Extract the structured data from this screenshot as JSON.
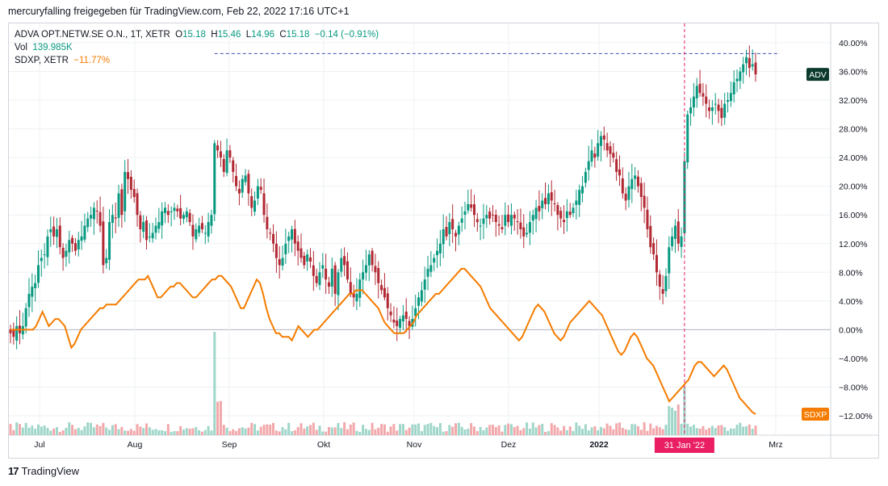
{
  "header": {
    "text": "mercuryfalling freigegeben für TradingView.com, Feb 22, 2022 17:16 UTC+1"
  },
  "legend": {
    "symbol": "ADVA OPT.NETW.SE O.N., 1T, XETR",
    "o_label": "O",
    "o": "15.18",
    "h_label": "H",
    "h": "15.46",
    "l_label": "L",
    "l": "14.96",
    "c_label": "C",
    "c": "15.18",
    "change": "−0.14 (−0.91%)",
    "vol_label": "Vol",
    "vol": "139.985K",
    "compare_label": "SDXP, XETR",
    "compare_value": "−11.77%"
  },
  "footer": {
    "brand": "TradingView",
    "logo_glyph": "17"
  },
  "colors": {
    "up": "#089981",
    "down": "#b22833",
    "compare": "#f57c00",
    "vol_up": "#9fd6c9",
    "vol_down": "#f2a8ab",
    "crosshair": "#e91e63",
    "ref_line": "#3f51b5",
    "adv_badge": "#0c3b2e"
  },
  "chart_data": {
    "type": "candlestick",
    "x_labels": [
      "Jul",
      "Aug",
      "Sep",
      "Okt",
      "Nov",
      "Dez",
      "2022",
      "Mrz"
    ],
    "crosshair_label": "31 Jan '22",
    "y_axis": {
      "unit": "%",
      "range": [
        -14,
        42
      ],
      "ticks": [
        "40.00%",
        "36.00%",
        "32.00%",
        "28.00%",
        "24.00%",
        "20.00%",
        "16.00%",
        "12.00%",
        "8.00%",
        "4.00%",
        "0.00%",
        "−4.00%",
        "−8.00%",
        "−12.00%"
      ]
    },
    "reference_level": 38.5,
    "series": [
      {
        "name": "ADV",
        "last": 35.6,
        "close": [
          -0.5,
          -1,
          0.5,
          -0.5,
          0.5,
          3,
          5,
          6,
          6.5,
          9,
          10,
          10.5,
          13,
          14,
          13,
          14,
          11.5,
          10,
          11,
          12.5,
          12,
          11,
          12.5,
          13,
          14.5,
          15.5,
          16,
          17,
          16.5,
          14.5,
          9,
          10,
          15,
          16,
          15.5,
          19,
          16,
          22,
          21,
          19.5,
          18.5,
          16,
          14,
          15,
          12.5,
          13,
          13.5,
          14.5,
          15,
          16.5,
          17,
          16,
          16.5,
          17,
          16.5,
          15.5,
          16,
          16.5,
          15,
          13,
          14,
          14.5,
          14,
          13.5,
          15,
          16,
          26,
          25,
          24,
          22,
          25,
          24,
          22,
          20,
          19,
          21,
          21.5,
          19,
          17,
          18,
          20,
          19.5,
          16,
          14,
          13.5,
          12,
          10,
          9,
          10,
          12,
          13,
          14,
          12,
          11,
          10,
          9,
          10.5,
          9.5,
          7.5,
          6.5,
          8,
          9,
          7,
          6,
          8.5,
          5,
          8,
          10,
          9,
          7,
          5,
          4.5,
          5,
          7,
          8,
          9,
          10.5,
          9,
          8,
          6.5,
          5.5,
          4.5,
          3,
          2,
          1,
          0.5,
          1.5,
          2,
          1.5,
          0.5,
          1.5,
          3,
          4.5,
          5.5,
          7,
          8.5,
          9,
          10,
          11,
          12,
          14,
          13,
          15,
          14,
          13,
          14.5,
          15.5,
          16.5,
          17.5,
          17,
          16,
          15,
          14.5,
          15.5,
          16,
          15.5,
          16,
          15,
          14.5,
          14,
          16,
          15,
          16,
          15.5,
          15,
          14,
          13,
          13.5,
          15,
          16,
          17,
          16.5,
          18,
          17.5,
          19,
          18,
          17.5,
          16,
          15.5,
          15,
          16.5,
          16,
          17,
          18,
          19.5,
          20,
          22,
          23.5,
          25,
          24,
          26,
          27,
          26.5,
          25,
          24.5,
          24,
          22,
          21.5,
          19,
          18,
          20,
          21,
          21.5,
          20,
          18.5,
          17,
          14,
          11.5,
          10.5,
          8,
          6,
          5,
          7.5,
          11.5,
          13,
          14.5,
          12,
          13,
          23.5,
          30,
          31,
          32.5,
          34,
          33,
          32.5,
          31.5,
          30.5,
          31,
          31.5,
          30.5,
          29.5,
          31.5,
          32,
          33,
          34.5,
          35,
          36,
          37,
          38,
          36.5,
          37,
          35.6
        ],
        "volume_units": "relative"
      },
      {
        "name": "SDXP",
        "last": -11.77,
        "values": [
          0,
          0,
          0,
          0,
          0,
          0,
          0,
          0,
          0.5,
          1.5,
          2.5,
          1.5,
          0.5,
          1,
          1.5,
          1.5,
          1,
          0.5,
          -1,
          -2.5,
          -2,
          -1,
          0,
          0.5,
          1,
          1.5,
          2,
          2.5,
          3,
          3,
          3.5,
          3.5,
          3.5,
          3.5,
          4,
          4.5,
          5,
          5.5,
          6,
          6.5,
          7,
          7,
          7,
          7.5,
          6.5,
          5.5,
          4.5,
          4.5,
          5,
          5.5,
          6,
          6,
          6.5,
          6.5,
          6,
          5.5,
          5,
          4.5,
          4.5,
          5,
          5.5,
          6,
          6.5,
          7,
          7,
          7.5,
          7.5,
          7,
          6.5,
          6,
          5,
          4,
          3,
          3,
          4,
          5,
          6,
          7,
          6.5,
          5,
          3,
          1.5,
          0.5,
          -0.5,
          -0.5,
          -1,
          -1,
          -1,
          -1.5,
          -0.5,
          0.5,
          0,
          -0.5,
          -1,
          -0.5,
          0,
          0,
          0.5,
          1,
          1.5,
          2,
          2.5,
          3,
          3.5,
          4,
          4.5,
          5,
          5,
          5.5,
          5.5,
          5.5,
          5,
          4.5,
          4,
          3.5,
          3,
          2,
          1,
          0.5,
          0,
          -0.5,
          -0.5,
          -0.5,
          -0.5,
          0,
          0.5,
          1,
          2,
          2.5,
          3,
          3.5,
          4,
          4.5,
          5,
          5,
          5.5,
          6,
          6.5,
          7,
          7.5,
          8,
          8.5,
          8.5,
          8,
          7.5,
          7,
          6.5,
          6,
          5,
          4,
          3,
          2.5,
          2,
          1.5,
          1,
          0.5,
          0,
          -0.5,
          -1,
          -1.5,
          -1,
          0,
          1,
          2,
          3,
          3.5,
          3,
          2.5,
          1.5,
          0.5,
          -0.5,
          -1,
          -1.5,
          -1,
          0,
          1,
          1.5,
          2,
          2.5,
          3,
          3.5,
          4,
          3.5,
          3,
          2.5,
          2,
          1,
          0,
          -1,
          -2,
          -3,
          -3.5,
          -3,
          -2,
          -1,
          -0.5,
          -1,
          -2,
          -3,
          -4,
          -4.5,
          -5,
          -6,
          -7,
          -8,
          -9,
          -10,
          -9.5,
          -9,
          -8.5,
          -8,
          -7.5,
          -7,
          -6,
          -5,
          -4.5,
          -4.5,
          -5,
          -5.5,
          -6,
          -6.5,
          -6,
          -5.5,
          -5,
          -5.5,
          -6.5,
          -7.5,
          -8.5,
          -9.5,
          -10,
          -10.5,
          -11,
          -11.5,
          -11.77
        ]
      }
    ]
  }
}
